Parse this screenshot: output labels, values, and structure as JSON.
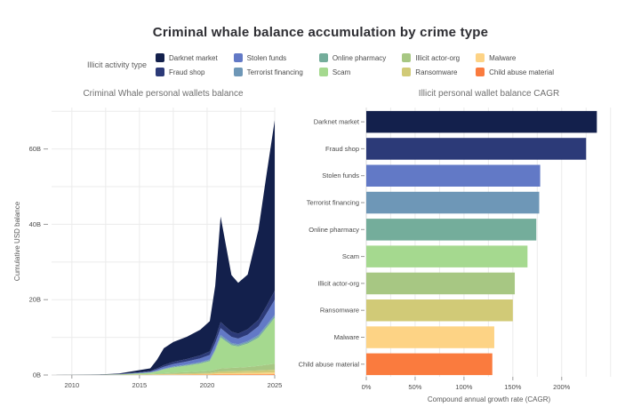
{
  "page": {
    "title": "Criminal whale balance accumulation by crime type",
    "background": "#ffffff"
  },
  "legend": {
    "title": "Illicit activity type",
    "items": [
      {
        "label": "Darknet market",
        "color": "#13204c"
      },
      {
        "label": "Stolen funds",
        "color": "#6279c6"
      },
      {
        "label": "Online pharmacy",
        "color": "#74ad9b"
      },
      {
        "label": "Illicit actor-org",
        "color": "#a7c783"
      },
      {
        "label": "Malware",
        "color": "#fdd385"
      },
      {
        "label": "Fraud shop",
        "color": "#2c3a78"
      },
      {
        "label": "Terrorist financing",
        "color": "#6e97b7"
      },
      {
        "label": "Scam",
        "color": "#a5d98f"
      },
      {
        "label": "Ransomware",
        "color": "#d1ca77"
      },
      {
        "label": "Child abuse material",
        "color": "#fa7b3e"
      }
    ]
  },
  "chart_data": [
    {
      "type": "area",
      "title": "Criminal Whale personal wallets balance",
      "xlabel": "",
      "ylabel": "Cumulative USD balance",
      "stacked": true,
      "grid": true,
      "xlim": [
        2008.5,
        2025
      ],
      "ylim": [
        0,
        71
      ],
      "x_tick_vals": [
        2010,
        2015,
        2020,
        2025
      ],
      "x_tick_labels": [
        "2010",
        "2015",
        "2020",
        "2025"
      ],
      "x_grid_step": 2.5,
      "y_tick_vals": [
        0,
        20,
        40,
        60
      ],
      "y_tick_labels": [
        "0B",
        "20B",
        "40B",
        "60B"
      ],
      "y_grid_step": 10,
      "units": "billions USD",
      "x": [
        2008.5,
        2012,
        2013.5,
        2015,
        2015.8,
        2016.3,
        2016.8,
        2017.5,
        2018.5,
        2019.5,
        2020.2,
        2020.6,
        2021,
        2021.8,
        2022.3,
        2023,
        2023.8,
        2024.4,
        2025
      ],
      "series": [
        {
          "name": "Child abuse material",
          "color": "#fa7b3e",
          "values": [
            0,
            0.005,
            0.01,
            0.02,
            0.03,
            0.04,
            0.05,
            0.06,
            0.08,
            0.09,
            0.1,
            0.12,
            0.15,
            0.15,
            0.16,
            0.17,
            0.18,
            0.19,
            0.2
          ]
        },
        {
          "name": "Malware",
          "color": "#fdd385",
          "values": [
            0,
            0.01,
            0.02,
            0.04,
            0.05,
            0.07,
            0.09,
            0.11,
            0.14,
            0.17,
            0.2,
            0.25,
            0.3,
            0.33,
            0.35,
            0.38,
            0.42,
            0.46,
            0.5
          ]
        },
        {
          "name": "Ransomware",
          "color": "#d1ca77",
          "values": [
            0,
            0.01,
            0.03,
            0.06,
            0.08,
            0.1,
            0.13,
            0.16,
            0.2,
            0.25,
            0.3,
            0.4,
            0.5,
            0.53,
            0.55,
            0.58,
            0.62,
            0.66,
            0.7
          ]
        },
        {
          "name": "Illicit actor-org",
          "color": "#a7c783",
          "values": [
            0,
            0.01,
            0.03,
            0.06,
            0.1,
            0.15,
            0.2,
            0.28,
            0.35,
            0.42,
            0.5,
            0.65,
            0.8,
            0.88,
            0.92,
            1.0,
            1.2,
            1.4,
            1.6
          ]
        },
        {
          "name": "Scam",
          "color": "#a5d98f",
          "values": [
            0,
            0.03,
            0.08,
            0.25,
            0.35,
            0.6,
            1.0,
            1.4,
            1.7,
            2.1,
            2.6,
            5.0,
            8.2,
            6.0,
            5.6,
            6.2,
            7.5,
            9.8,
            12.2
          ]
        },
        {
          "name": "Online pharmacy",
          "color": "#74ad9b",
          "values": [
            0,
            0.005,
            0.01,
            0.03,
            0.05,
            0.08,
            0.1,
            0.13,
            0.16,
            0.2,
            0.22,
            0.28,
            0.35,
            0.32,
            0.3,
            0.33,
            0.36,
            0.38,
            0.4
          ]
        },
        {
          "name": "Terrorist financing",
          "color": "#6e97b7",
          "values": [
            0,
            0.005,
            0.01,
            0.03,
            0.05,
            0.08,
            0.1,
            0.13,
            0.16,
            0.2,
            0.22,
            0.28,
            0.35,
            0.32,
            0.3,
            0.33,
            0.36,
            0.38,
            0.4
          ]
        },
        {
          "name": "Stolen funds",
          "color": "#6279c6",
          "values": [
            0,
            0.01,
            0.05,
            0.15,
            0.2,
            0.35,
            0.5,
            0.65,
            0.8,
            1.0,
            1.2,
            1.5,
            1.8,
            1.6,
            1.5,
            1.7,
            2.3,
            3.1,
            4.0
          ]
        },
        {
          "name": "Fraud shop",
          "color": "#2c3a78",
          "values": [
            0,
            0.01,
            0.04,
            0.1,
            0.15,
            0.3,
            0.45,
            0.55,
            0.65,
            0.8,
            0.95,
            1.2,
            1.6,
            1.4,
            1.3,
            1.45,
            1.7,
            2.0,
            2.4
          ]
        },
        {
          "name": "Darknet market",
          "color": "#13204c",
          "values": [
            0,
            0.06,
            0.12,
            0.55,
            0.7,
            2.3,
            4.5,
            5.3,
            5.9,
            6.8,
            8.0,
            14.0,
            28.0,
            15.0,
            13.5,
            14.5,
            24.0,
            35.0,
            45.2
          ]
        }
      ]
    },
    {
      "type": "bar",
      "orientation": "horizontal",
      "title": "Illicit personal wallet balance CAGR",
      "xlabel": "Compound annual growth rate (CAGR)",
      "grid": true,
      "categories": [
        "Darknet market",
        "Fraud shop",
        "Stolen funds",
        "Terrorist financing",
        "Online pharmacy",
        "Scam",
        "Illicit actor-org",
        "Ransomware",
        "Malware",
        "Child abuse material"
      ],
      "values_pct": [
        236,
        225,
        178,
        177,
        174,
        165,
        152,
        150,
        131,
        129
      ],
      "colors": [
        "#13204c",
        "#2c3a78",
        "#6279c6",
        "#6e97b7",
        "#74ad9b",
        "#a5d98f",
        "#a7c783",
        "#d1ca77",
        "#fdd385",
        "#fa7b3e"
      ],
      "xlim": [
        0,
        273
      ],
      "x_tick_vals": [
        0,
        50,
        100,
        150,
        200
      ],
      "x_tick_labels": [
        "0%",
        "50%",
        "100%",
        "150%",
        "200%"
      ],
      "x_grid_step": 25
    }
  ]
}
